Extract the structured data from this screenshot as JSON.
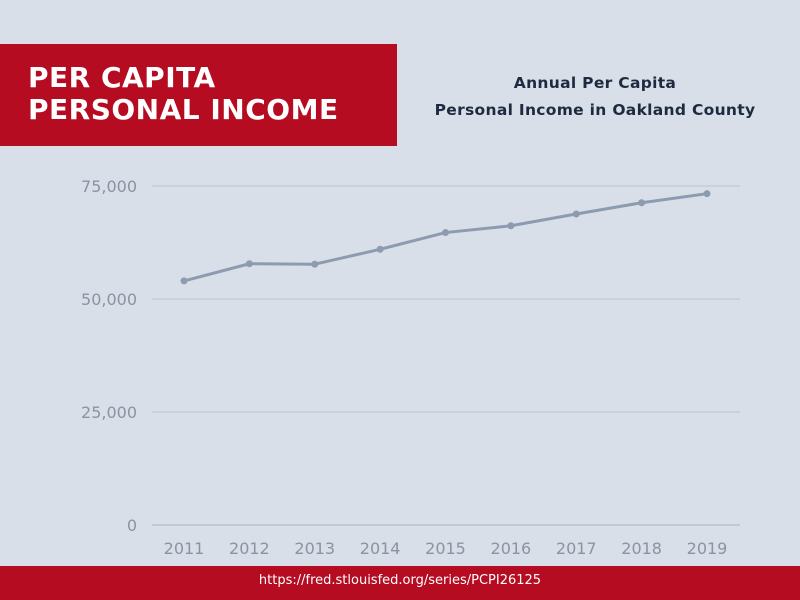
{
  "header": {
    "title_line1": "PER CAPITA",
    "title_line2": "PERSONAL INCOME",
    "subtitle_line1": "Annual Per Capita",
    "subtitle_line2": "Personal Income in Oakland County"
  },
  "footer": {
    "source_url": "https://fred.stlouisfed.org/series/PCPI26125"
  },
  "colors": {
    "background": "#d9dfe9",
    "accent_red": "#b50c22",
    "line": "#8d9bb0",
    "grid": "#b9c3d3",
    "axis_text": "#8a93a2"
  },
  "chart_data": {
    "type": "line",
    "title": "",
    "xlabel": "",
    "ylabel": "",
    "categories": [
      "2011",
      "2012",
      "2013",
      "2014",
      "2015",
      "2016",
      "2017",
      "2018",
      "2019"
    ],
    "series": [
      {
        "values": [
          54000,
          57800,
          57700,
          61000,
          64700,
          66200,
          68800,
          71300,
          73300
        ]
      }
    ],
    "yticks": [
      0,
      25000,
      50000,
      75000
    ],
    "ytick_labels": [
      "0",
      "25,000",
      "50,000",
      "75,000"
    ],
    "ylim": [
      0,
      75000
    ],
    "grid": true,
    "legend": "none"
  }
}
